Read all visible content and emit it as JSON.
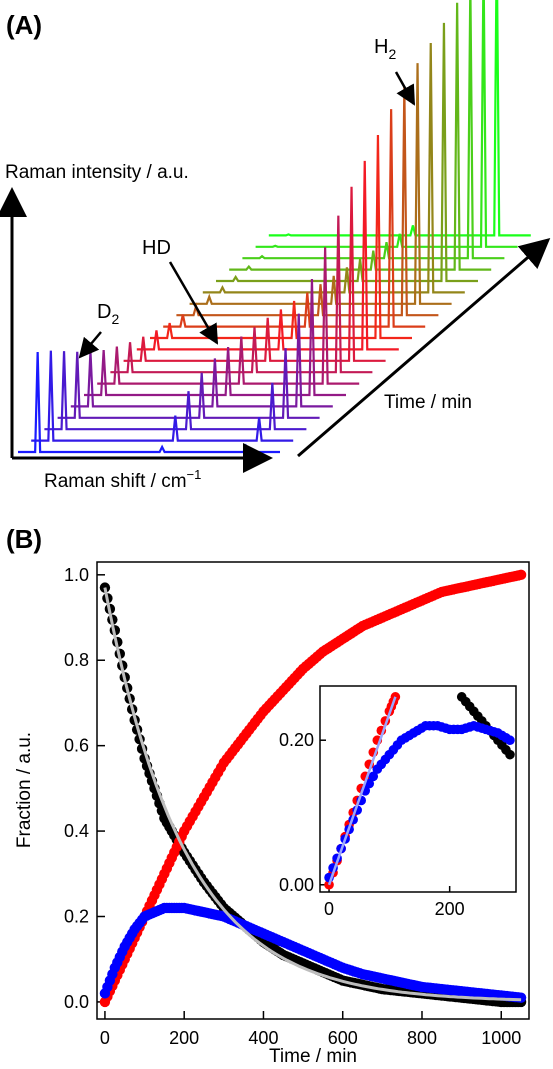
{
  "panel_a": {
    "label": "(A)",
    "y_axis_label": "Raman intensity / a.u.",
    "x_axis_label": "Raman shift / cm",
    "x_axis_superscript": "−1",
    "depth_axis_label": "Time / min",
    "annotations": {
      "h2": "H",
      "h2_sub": "2",
      "hd": "HD",
      "d2": "D",
      "d2_sub": "2"
    },
    "colors": {
      "start": "#1a1aff",
      "middle": "#ff1a1a",
      "end": "#1aff1a"
    }
  },
  "chart_data": [
    {
      "type": "line",
      "description_id": "panel-a-waterfall",
      "title": "",
      "xlabel": "Raman shift / cm−1",
      "ylabel": "Raman intensity / a.u.",
      "zlabel": "Time / min",
      "series": [
        {
          "name": "D2",
          "relative_peak_heights": [
            1.0,
            0.9,
            0.78,
            0.66,
            0.55,
            0.45,
            0.37,
            0.3,
            0.24,
            0.19,
            0.15,
            0.12,
            0.09,
            0.07,
            0.05,
            0.04,
            0.03,
            0.02,
            0.01,
            0.01
          ]
        },
        {
          "name": "HD",
          "relative_peak_heights": [
            0.05,
            0.25,
            0.38,
            0.45,
            0.48,
            0.48,
            0.47,
            0.45,
            0.43,
            0.4,
            0.37,
            0.34,
            0.31,
            0.28,
            0.25,
            0.22,
            0.19,
            0.16,
            0.13,
            0.1
          ]
        },
        {
          "name": "H2",
          "relative_peak_heights": [
            0.02,
            0.08,
            0.16,
            0.24,
            0.32,
            0.4,
            0.47,
            0.54,
            0.6,
            0.65,
            0.7,
            0.75,
            0.79,
            0.83,
            0.86,
            0.89,
            0.92,
            0.95,
            0.98,
            1.0
          ]
        }
      ]
    },
    {
      "type": "scatter",
      "description_id": "panel-b-main",
      "title": "",
      "xlabel": "Time / min",
      "ylabel": "Fraction / a.u.",
      "xlim": [
        -20,
        1070
      ],
      "ylim": [
        -0.04,
        1.03
      ],
      "x_ticks": [
        0,
        200,
        400,
        600,
        800,
        1000
      ],
      "y_ticks": [
        0.0,
        0.2,
        0.4,
        0.6,
        0.8,
        1.0
      ],
      "series": [
        {
          "name": "black",
          "color": "#000000",
          "x": [
            0,
            25,
            50,
            75,
            100,
            125,
            150,
            175,
            200,
            250,
            300,
            350,
            400,
            450,
            500,
            550,
            600,
            650,
            700,
            750,
            800,
            850,
            900,
            950,
            1000,
            1050
          ],
          "y": [
            0.97,
            0.87,
            0.76,
            0.66,
            0.57,
            0.5,
            0.43,
            0.39,
            0.35,
            0.28,
            0.22,
            0.18,
            0.14,
            0.11,
            0.09,
            0.07,
            0.05,
            0.04,
            0.03,
            0.025,
            0.02,
            0.015,
            0.01,
            0.005,
            0.0,
            0.0
          ]
        },
        {
          "name": "red",
          "color": "#ff0000",
          "x": [
            0,
            25,
            50,
            75,
            100,
            125,
            150,
            175,
            200,
            250,
            300,
            350,
            400,
            450,
            500,
            550,
            600,
            650,
            700,
            750,
            800,
            850,
            900,
            950,
            1000,
            1050
          ],
          "y": [
            0.0,
            0.05,
            0.1,
            0.15,
            0.2,
            0.25,
            0.3,
            0.35,
            0.4,
            0.48,
            0.56,
            0.62,
            0.68,
            0.73,
            0.78,
            0.82,
            0.85,
            0.88,
            0.9,
            0.92,
            0.94,
            0.96,
            0.97,
            0.98,
            0.99,
            1.0
          ]
        },
        {
          "name": "blue",
          "color": "#0000ff",
          "x": [
            0,
            25,
            50,
            75,
            100,
            125,
            150,
            175,
            200,
            250,
            300,
            350,
            400,
            450,
            500,
            550,
            600,
            650,
            700,
            750,
            800,
            850,
            900,
            950,
            1000,
            1050
          ],
          "y": [
            0.02,
            0.08,
            0.13,
            0.17,
            0.2,
            0.21,
            0.22,
            0.22,
            0.22,
            0.21,
            0.2,
            0.18,
            0.16,
            0.14,
            0.12,
            0.1,
            0.08,
            0.065,
            0.055,
            0.045,
            0.035,
            0.03,
            0.025,
            0.02,
            0.015,
            0.01
          ]
        },
        {
          "name": "fit",
          "color": "#bdbdbd",
          "fit_function": "0.97*exp(-t/200)",
          "x": [
            0,
            50,
            100,
            150,
            200,
            250,
            300,
            400,
            500,
            600,
            700,
            800,
            900,
            1000,
            1050
          ],
          "y": [
            0.97,
            0.76,
            0.59,
            0.46,
            0.36,
            0.28,
            0.22,
            0.13,
            0.08,
            0.05,
            0.03,
            0.02,
            0.01,
            0.01,
            0.0
          ]
        }
      ]
    },
    {
      "type": "scatter",
      "description_id": "panel-b-inset",
      "title": "",
      "xlim": [
        -15,
        310
      ],
      "ylim": [
        -0.01,
        0.275
      ],
      "x_ticks": [
        0,
        200
      ],
      "y_ticks": [
        0.0,
        0.2
      ],
      "series": [
        {
          "name": "black",
          "color": "#000000",
          "x": [
            220,
            240,
            260,
            280,
            300
          ],
          "y": [
            0.26,
            0.24,
            0.22,
            0.2,
            0.18
          ]
        },
        {
          "name": "red",
          "color": "#ff0000",
          "x": [
            0,
            20,
            40,
            60,
            80,
            100,
            110
          ],
          "y": [
            0.0,
            0.05,
            0.1,
            0.15,
            0.2,
            0.24,
            0.26
          ]
        },
        {
          "name": "blue",
          "color": "#0000ff",
          "x": [
            0,
            20,
            40,
            60,
            80,
            100,
            120,
            140,
            160,
            180,
            200,
            220,
            240,
            260,
            280,
            300
          ],
          "y": [
            0.01,
            0.05,
            0.09,
            0.13,
            0.16,
            0.18,
            0.2,
            0.21,
            0.22,
            0.22,
            0.215,
            0.215,
            0.22,
            0.215,
            0.21,
            0.2
          ]
        },
        {
          "name": "linear-fit",
          "color": "#9aa6ff",
          "x": [
            0,
            110
          ],
          "y": [
            0.0,
            0.26
          ]
        }
      ]
    }
  ],
  "panel_b": {
    "label": "(B)",
    "ylabel": "Fraction / a.u.",
    "xlabel": "Time / min",
    "tick_labels_x": [
      "0",
      "200",
      "400",
      "600",
      "800",
      "1000"
    ],
    "tick_labels_y": [
      "0.0",
      "0.2",
      "0.4",
      "0.6",
      "0.8",
      "1.0"
    ],
    "inset_tick_labels_x": [
      "0",
      "200"
    ],
    "inset_tick_labels_y": [
      "0.00",
      "0.20"
    ]
  }
}
